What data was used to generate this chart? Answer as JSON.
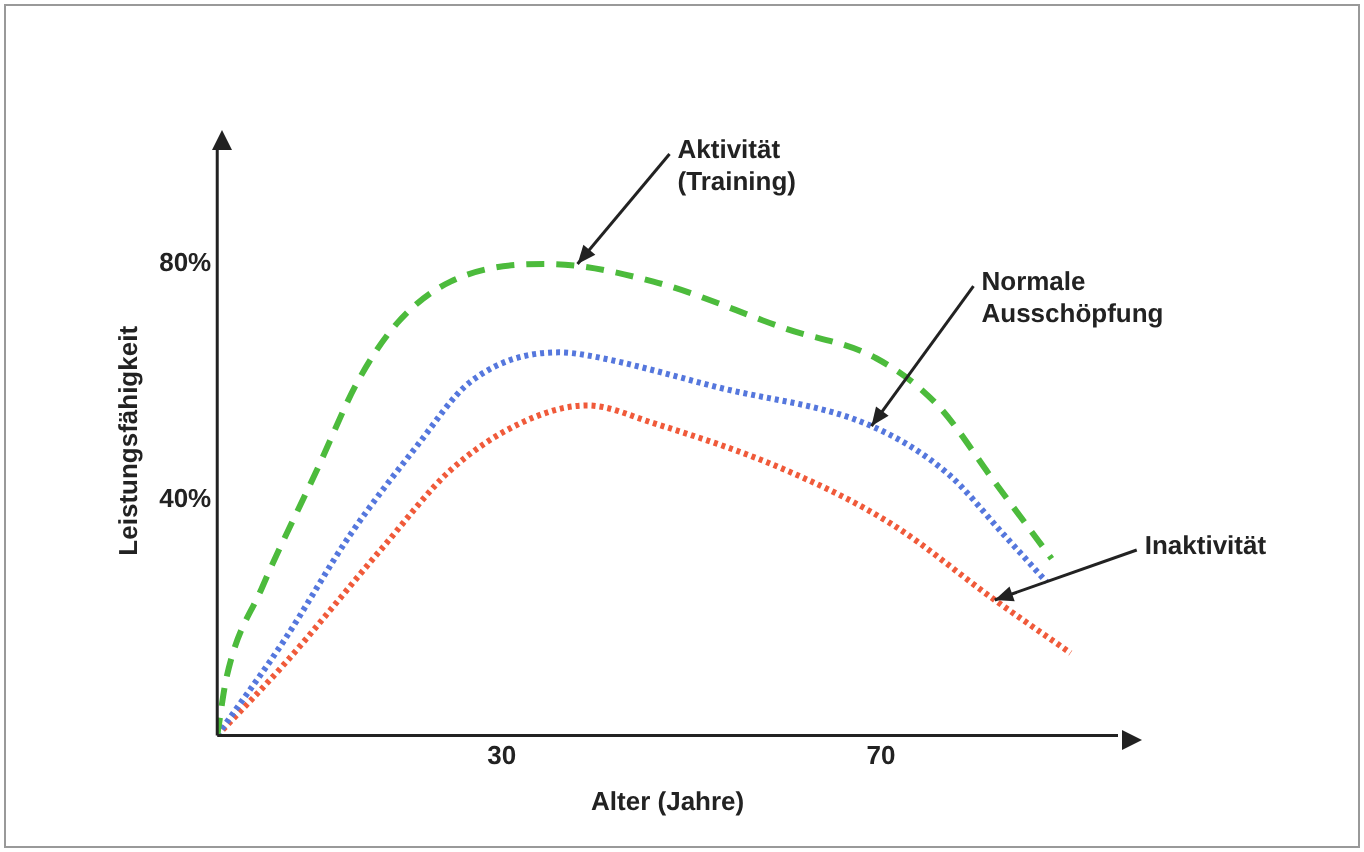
{
  "chart_data": {
    "type": "line",
    "xlabel": "Alter (Jahre)",
    "ylabel": "Leistungsfähigkeit",
    "xlim": [
      0,
      95
    ],
    "ylim": [
      0,
      100
    ],
    "xticks": [
      30,
      70
    ],
    "yticks": [
      {
        "value": 40,
        "label": "40%"
      },
      {
        "value": 80,
        "label": "80%"
      }
    ],
    "grid": false,
    "legend": false,
    "marker": "none",
    "series": [
      {
        "color": "#4cbb3c",
        "line_style": "dashed",
        "x": [
          0,
          1,
          4.7,
          10.5,
          14.8,
          19,
          24.6,
          34.7,
          46,
          60,
          69.5,
          76,
          82,
          88
        ],
        "values": [
          0,
          10,
          25,
          45,
          60,
          70,
          77,
          80,
          77,
          69,
          64,
          56,
          43,
          30
        ]
      },
      {
        "color": "#5577dd",
        "line_style": "dotted",
        "x": [
          0,
          7,
          14,
          21,
          26.7,
          36,
          39,
          53,
          69,
          77,
          83,
          87.5
        ],
        "values": [
          0,
          16,
          34,
          49,
          60,
          65,
          64.5,
          59,
          52.5,
          44.5,
          34,
          26
        ]
      },
      {
        "color": "#f05a3a",
        "line_style": "dotted",
        "x": [
          0,
          7,
          17.5,
          24.6,
          32,
          39,
          46,
          60,
          71,
          82,
          90
        ],
        "values": [
          0,
          12,
          32,
          45,
          53,
          56,
          53,
          45,
          36,
          23,
          14
        ]
      }
    ],
    "annotations": [
      {
        "text": "Aktivität\n(Training)",
        "x": 38,
        "y": 80
      },
      {
        "text": "Normale\nAusschöpfung",
        "x": 69,
        "y": 52.5
      },
      {
        "text": "Inaktivität",
        "x": 82,
        "y": 23
      }
    ]
  }
}
